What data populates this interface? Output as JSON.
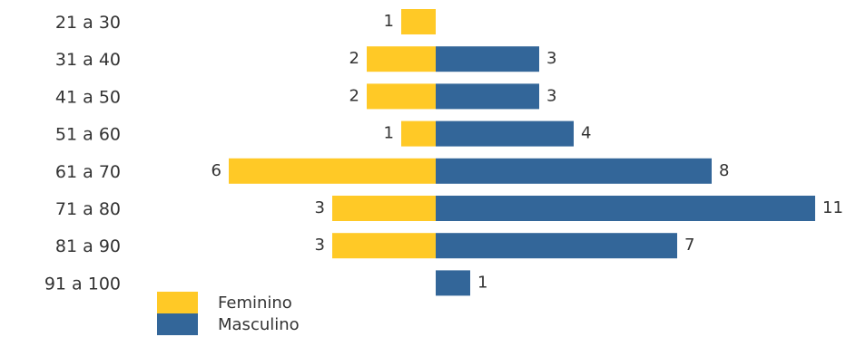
{
  "chart_data": {
    "type": "bar",
    "orientation": "horizontal-diverging",
    "title": "",
    "xlabel": "",
    "ylabel": "",
    "categories": [
      "21 a 30",
      "31 a 40",
      "41 a 50",
      "51 a 60",
      "61 a 70",
      "71 a 80",
      "81 a 90",
      "91 a 100"
    ],
    "series": [
      {
        "name": "Feminino",
        "color": "#FFC926",
        "direction": "left",
        "values": [
          1,
          2,
          2,
          1,
          6,
          3,
          3,
          0
        ]
      },
      {
        "name": "Masculino",
        "color": "#336699",
        "direction": "right",
        "values": [
          0,
          3,
          3,
          4,
          8,
          11,
          7,
          1
        ]
      }
    ],
    "legend_position": "bottom-left",
    "grid": false
  }
}
